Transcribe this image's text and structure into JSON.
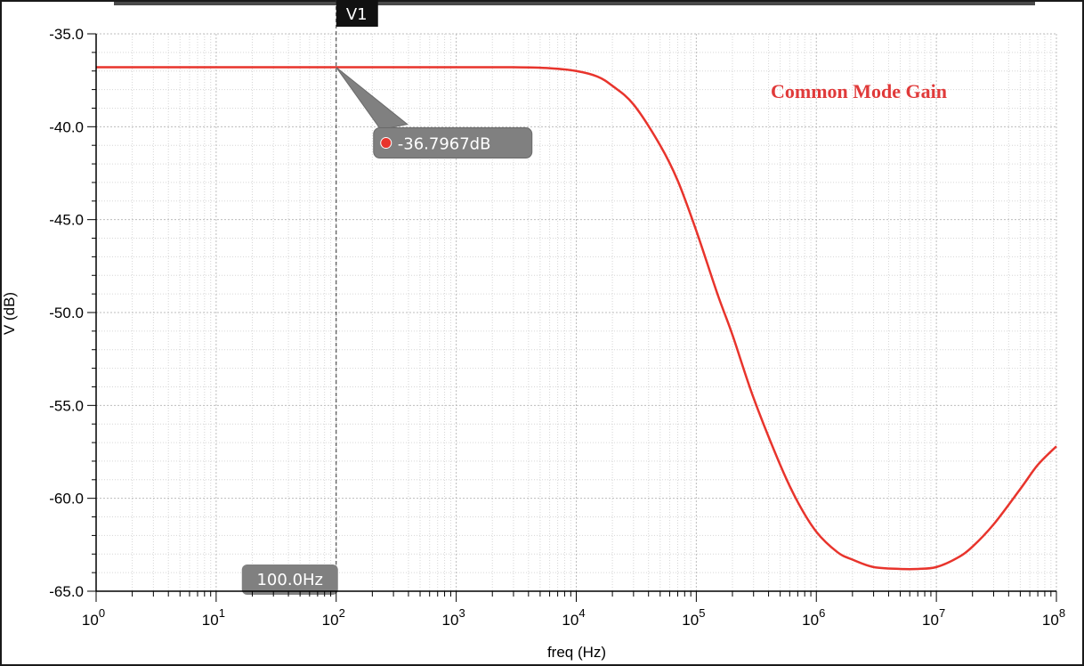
{
  "chart_data": {
    "type": "line",
    "x_scale": "log",
    "xlabel": "freq (Hz)",
    "ylabel": "V (dB)",
    "xlim": [
      1,
      100000000
    ],
    "ylim": [
      -65,
      -35
    ],
    "grid": true,
    "x_ticks": [
      {
        "value": 1,
        "base": "10",
        "exp": "0"
      },
      {
        "value": 10,
        "base": "10",
        "exp": "1"
      },
      {
        "value": 100,
        "base": "10",
        "exp": "2"
      },
      {
        "value": 1000,
        "base": "10",
        "exp": "3"
      },
      {
        "value": 10000,
        "base": "10",
        "exp": "4"
      },
      {
        "value": 100000,
        "base": "10",
        "exp": "5"
      },
      {
        "value": 1000000,
        "base": "10",
        "exp": "6"
      },
      {
        "value": 10000000,
        "base": "10",
        "exp": "7"
      },
      {
        "value": 100000000,
        "base": "10",
        "exp": "8"
      }
    ],
    "y_ticks": [
      {
        "value": -35,
        "label": "-35.0"
      },
      {
        "value": -40,
        "label": "-40.0"
      },
      {
        "value": -45,
        "label": "-45.0"
      },
      {
        "value": -50,
        "label": "-50.0"
      },
      {
        "value": -55,
        "label": "-55.0"
      },
      {
        "value": -60,
        "label": "-60.0"
      },
      {
        "value": -65,
        "label": "-65.0"
      }
    ],
    "series": [
      {
        "color": "#e8342c",
        "x": [
          1,
          10,
          100,
          1000,
          3000,
          6000,
          10000,
          15000,
          20000,
          30000,
          50000,
          70000,
          100000,
          150000,
          200000,
          300000,
          500000,
          700000,
          1000000,
          1500000,
          2000000,
          3000000,
          5000000,
          7000000,
          10000000,
          15000000,
          20000000,
          30000000,
          50000000,
          70000000,
          100000000
        ],
        "y": [
          -36.8,
          -36.8,
          -36.8,
          -36.8,
          -36.8,
          -36.85,
          -37.0,
          -37.3,
          -37.8,
          -38.8,
          -41.0,
          -42.9,
          -45.6,
          -49.0,
          -51.2,
          -54.6,
          -58.2,
          -60.2,
          -61.8,
          -62.9,
          -63.3,
          -63.7,
          -63.8,
          -63.8,
          -63.7,
          -63.2,
          -62.6,
          -61.4,
          -59.5,
          -58.2,
          -57.2
        ]
      }
    ],
    "annotation": "Common Mode Gain",
    "marker": {
      "name": "V1",
      "x": 100,
      "x_label": "100.0Hz",
      "y_label": "-36.7967dB"
    }
  },
  "colors": {
    "trace": "#e8342c",
    "annotation": "#e03a3a",
    "marker_bubble": "#808080",
    "frame": "#2b2b2b"
  }
}
